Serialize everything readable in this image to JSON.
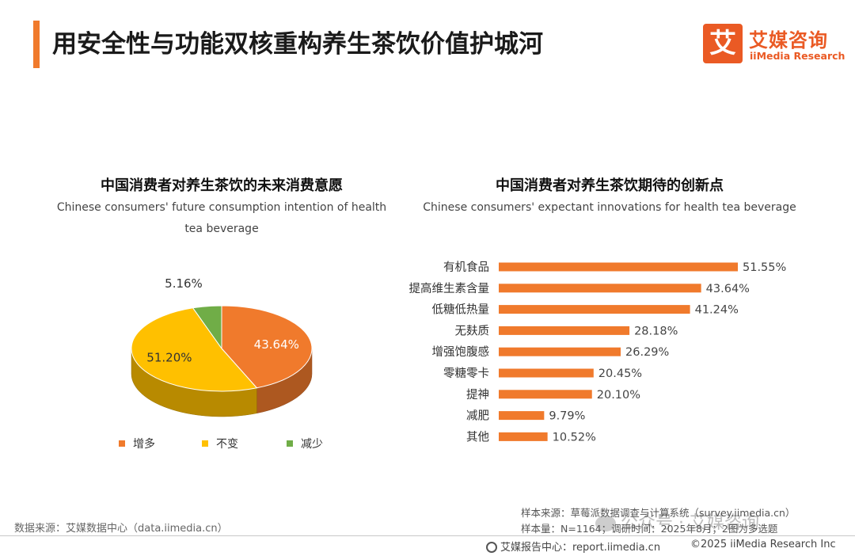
{
  "page_title": "用安全性与功能双核重构养生茶饮价值护城河",
  "brand": {
    "logo_char": "艾",
    "name_cn": "艾媒咨询",
    "name_en": "iiMedia Research",
    "color": "#ea5a24"
  },
  "accent_color": "#f07a2c",
  "chart_data": [
    {
      "type": "pie",
      "title": "中国消费者对养生茶饮的未来消费意愿",
      "subtitle": "Chinese consumers' future consumption intention of health tea beverage",
      "categories": [
        "增多",
        "不变",
        "减少"
      ],
      "values": [
        43.64,
        51.2,
        5.16
      ],
      "labels": [
        "43.64%",
        "51.20%",
        "5.16%"
      ],
      "colors": [
        "#f07a2c",
        "#ffc000",
        "#70ad47"
      ],
      "legend_position": "bottom"
    },
    {
      "type": "bar",
      "orientation": "horizontal",
      "title": "中国消费者对养生茶饮期待的创新点",
      "subtitle": "Chinese consumers' expectant innovations for health tea beverage",
      "categories": [
        "有机食品",
        "提高维生素含量",
        "低糖低热量",
        "无麸质",
        "增强饱腹感",
        "零糖零卡",
        "提神",
        "减肥",
        "其他"
      ],
      "values": [
        51.55,
        43.64,
        41.24,
        28.18,
        26.29,
        20.45,
        20.1,
        9.79,
        10.52
      ],
      "labels": [
        "51.55%",
        "43.64%",
        "41.24%",
        "28.18%",
        "26.29%",
        "20.45%",
        "20.10%",
        "9.79%",
        "10.52%"
      ],
      "color": "#f07a2c"
    }
  ],
  "source_left": "数据来源：艾媒数据中心（data.iimedia.cn）",
  "sample_source": "样本来源：草莓派数据调查与计算系统（survey.iimedia.cn）",
  "sample_size": "样本量：N=1164；调研时间：2025年8月；2图为多选题",
  "footer_center": "艾媒报告中心：report.iimedia.cn",
  "footer_right": "©2025  iiMedia Research  Inc",
  "watermark": "公众号 · 艾媒咨询"
}
